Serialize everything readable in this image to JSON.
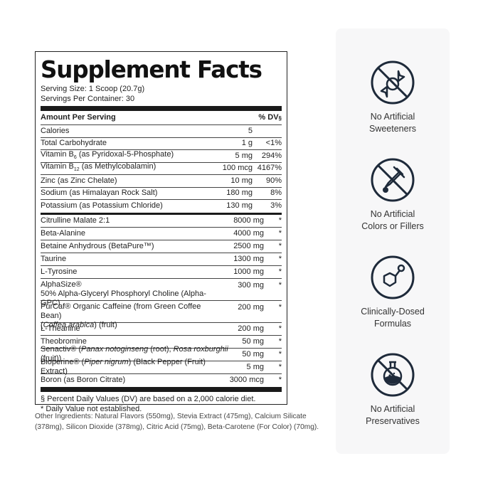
{
  "facts": {
    "title": "Supplement Facts",
    "serving_size": "Serving Size: 1 Scoop (20.7g)",
    "servings_per_container": "Servings Per Container: 30",
    "header_amount": "Amount Per Serving",
    "header_dv": "% DV§",
    "nutrients": [
      {
        "name": "Calories",
        "amount": "5",
        "dv": ""
      },
      {
        "name": "Total Carbohydrate",
        "amount": "1 g",
        "dv": "<1%"
      },
      {
        "name": "Vitamin B6 (as Pyridoxal-5-Phosphate)",
        "name_pre": "Vitamin B",
        "name_sub": "6",
        "name_post": " (as Pyridoxal-5-Phosphate)",
        "amount": "5 mg",
        "dv": "294%"
      },
      {
        "name": "Vitamin B12 (as Methylcobalamin)",
        "name_pre": "Vitamin B",
        "name_sub": "12",
        "name_post": " (as Methylcobalamin)",
        "amount": "100 mcg",
        "dv": "4167%"
      },
      {
        "name": "Zinc (as Zinc Chelate)",
        "amount": "10 mg",
        "dv": "90%"
      },
      {
        "name": "Sodium (as Himalayan Rock Salt)",
        "amount": "180 mg",
        "dv": "8%"
      },
      {
        "name": "Potassium (as Potassium Chloride)",
        "amount": "130 mg",
        "dv": "3%"
      }
    ],
    "ingredients": [
      {
        "name": "Citrulline Malate 2:1",
        "amount": "8000 mg",
        "dv": "*"
      },
      {
        "name": "Beta-Alanine",
        "amount": "4000 mg",
        "dv": "*"
      },
      {
        "name": "Betaine Anhydrous (BetaPure™)",
        "amount": "2500 mg",
        "dv": "*"
      },
      {
        "name": "Taurine",
        "amount": "1300 mg",
        "dv": "*"
      },
      {
        "name": "L-Tyrosine",
        "amount": "1000 mg",
        "dv": "*"
      },
      {
        "name_line1": "AlphaSize®",
        "name_line2": "50% Alpha-Glyceryl Phosphoryl Choline (Alpha-GPC)",
        "amount": "300 mg",
        "dv": "*"
      },
      {
        "name_line1": "PurCaf® Organic Caffeine (from Green Coffee Bean)",
        "name_line2_italic": "Coffea arabica",
        "name_line2_rest": ") (fruit)",
        "name_line2_open": "(",
        "amount": "200 mg",
        "dv": "*"
      },
      {
        "name": "L-Theanine",
        "amount": "200 mg",
        "dv": "*"
      },
      {
        "name": "Theobromine",
        "amount": "50 mg",
        "dv": "*"
      },
      {
        "name_a": "Senactiv® (",
        "name_i1": "Panax notoginseng",
        "name_b": " (root), ",
        "name_i2": "Rosa roxburghii",
        "name_c": " (fruit))",
        "amount": "50 mg",
        "dv": "*"
      },
      {
        "name_a": "Bioperine® (",
        "name_i1": "Piper nigrum",
        "name_b": ") (Black Pepper (Fruit) Extract)",
        "amount": "5 mg",
        "dv": "*"
      },
      {
        "name": "Boron (as Boron Citrate)",
        "amount": "3000 mcg",
        "dv": "*"
      }
    ],
    "footnote_1": "§ Percent Daily Values (DV) are based on a 2,000 calorie diet.",
    "footnote_2": "* Daily Value not established."
  },
  "other_ingredients": "Other Ingredients: Natural Flavors (550mg), Stevia Extract (475mg), Calcium Silicate (378mg), Silicon Dioxide (378mg), Citric Acid (75mg), Beta-Carotene (For Color) (70mg).",
  "badges": [
    {
      "icon": "no-candy-icon",
      "line1": "No Artificial",
      "line2": "Sweeteners"
    },
    {
      "icon": "no-dropper-icon",
      "line1": "No Artificial",
      "line2": "Colors or Fillers"
    },
    {
      "icon": "molecule-icon",
      "line1": "Clinically-Dosed",
      "line2": "Formulas"
    },
    {
      "icon": "no-flask-icon",
      "line1": "No Artificial",
      "line2": "Preservatives"
    }
  ],
  "colors": {
    "icon_dark": "#1e2a3a",
    "badge_bg": "#f7f7f8"
  }
}
